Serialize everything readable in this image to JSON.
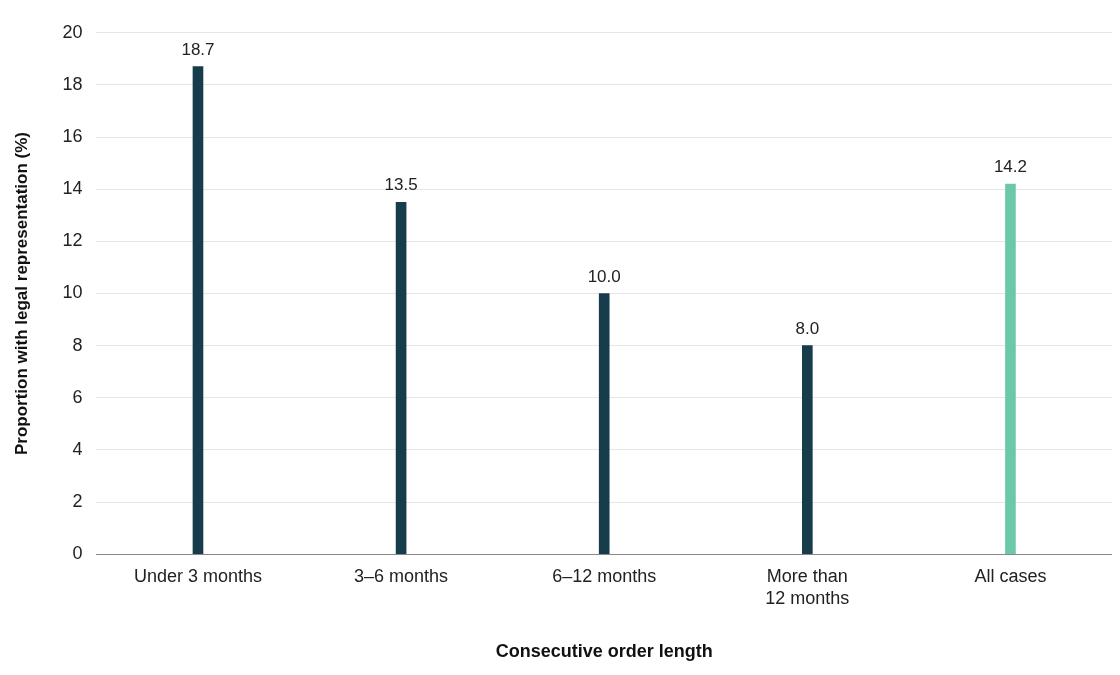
{
  "chart_data": {
    "type": "bar",
    "xlabel": "Consecutive order length",
    "ylabel": "Proportion with legal representation (%)",
    "categories": [
      "Under 3 months",
      "3–6 months",
      "6–12 months",
      "More than 12 months",
      "All cases"
    ],
    "values": [
      18.7,
      13.5,
      10.0,
      8.0,
      14.2
    ],
    "value_labels": [
      "18.7",
      "13.5",
      "10.0",
      "8.0",
      "14.2"
    ],
    "colors": [
      "#173d4d",
      "#173d4d",
      "#173d4d",
      "#173d4d",
      "#6cc9a8"
    ],
    "ylim": [
      0,
      20
    ],
    "yticks": [
      0,
      2,
      4,
      6,
      8,
      10,
      12,
      14,
      16,
      18,
      20
    ],
    "grid": "y",
    "legend": false
  }
}
